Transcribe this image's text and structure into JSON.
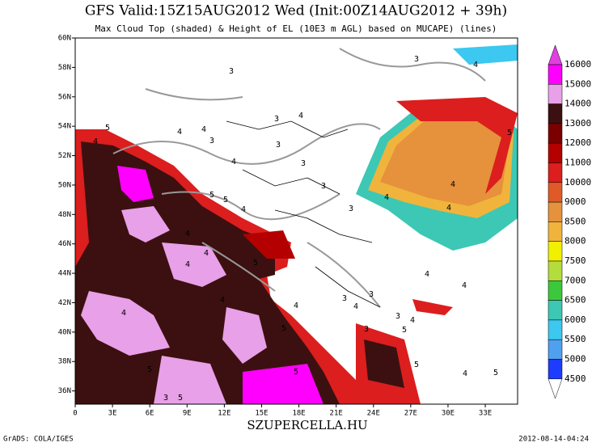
{
  "header": {
    "title": "GFS Valid:15Z15AUG2012 Wed (Init:00Z14AUG2012 + 39h)",
    "subtitle": "Max Cloud Top (shaded) & Height of EL (10E3 m AGL) based on MUCAPE) (lines)"
  },
  "map": {
    "lon_range": [
      0,
      35.6
    ],
    "lat_range": [
      35.1,
      60
    ],
    "lon_labels": [
      0,
      {
        "value": 3,
        "label": "3E"
      },
      {
        "value": 6,
        "label": "6E"
      },
      {
        "value": 9,
        "label": "9E"
      },
      {
        "value": 12,
        "label": "12E"
      },
      {
        "value": 15,
        "label": "15E"
      },
      {
        "value": 18,
        "label": "18E"
      },
      {
        "value": 21,
        "label": "21E"
      },
      {
        "value": 24,
        "label": "24E"
      },
      {
        "value": 27,
        "label": "27E"
      },
      {
        "value": 30,
        "label": "30E"
      },
      {
        "value": 33,
        "label": "33E"
      }
    ],
    "lat_labels": [
      {
        "value": 60,
        "label": "60N"
      },
      {
        "value": 58,
        "label": "58N"
      },
      {
        "value": 56,
        "label": "56N"
      },
      {
        "value": 54,
        "label": "54N"
      },
      {
        "value": 52,
        "label": "52N"
      },
      {
        "value": 50,
        "label": "50N"
      },
      {
        "value": 48,
        "label": "48N"
      },
      {
        "value": 46,
        "label": "46N"
      },
      {
        "value": 44,
        "label": "44N"
      },
      {
        "value": 42,
        "label": "42N"
      },
      {
        "value": 40,
        "label": "40N"
      },
      {
        "value": 38,
        "label": "38N"
      },
      {
        "value": 36,
        "label": "36N"
      }
    ],
    "contour_labels": [
      5,
      4,
      4,
      4,
      3,
      3,
      3,
      4,
      3,
      3,
      4,
      3,
      5,
      5,
      4,
      4,
      4,
      5,
      4,
      4,
      4,
      5,
      5,
      3,
      3,
      4,
      3,
      4,
      4,
      3,
      4,
      4,
      5,
      5,
      4,
      3,
      5,
      5,
      4,
      4,
      5,
      5,
      3,
      3,
      4,
      4
    ]
  },
  "colorbar": {
    "levels": [
      16000,
      15000,
      14000,
      13000,
      12000,
      11000,
      10000,
      9000,
      8500,
      8000,
      7500,
      7000,
      6500,
      6000,
      5500,
      5000,
      4500
    ],
    "colors": [
      "#e040e0",
      "#ff00ff",
      "#e8a0e8",
      "#3c1010",
      "#7a0000",
      "#b40000",
      "#dc1e1e",
      "#e05a28",
      "#e6913c",
      "#f0b43c",
      "#f0f000",
      "#b4dc3c",
      "#3cc83c",
      "#3cc8b4",
      "#3cc8f0",
      "#50a0f0",
      "#1e3cff"
    ]
  },
  "footer": {
    "left": "GrADS: COLA/IGES",
    "center": "SZUPERCELLA.HU",
    "right": "2012-08-14-04:24"
  }
}
